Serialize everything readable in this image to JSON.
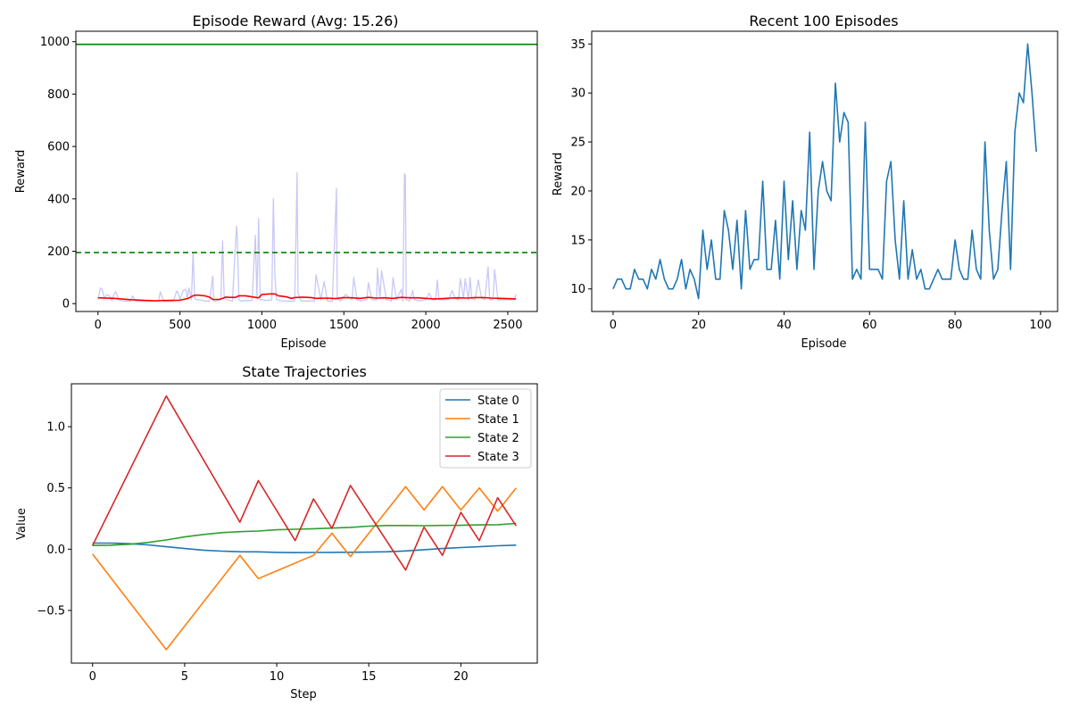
{
  "figure": {
    "background": "#ffffff"
  },
  "chart_data": [
    {
      "type": "line",
      "title": "Episode Reward (Avg: 15.26)",
      "xlabel": "Episode",
      "ylabel": "Reward",
      "xlim": [
        -135,
        2680
      ],
      "ylim": [
        -30,
        1040
      ],
      "xticks": [
        0,
        500,
        1000,
        1500,
        2000,
        2500
      ],
      "yticks": [
        0,
        200,
        400,
        600,
        800,
        1000
      ],
      "grid": false,
      "legend": "none",
      "hlines": [
        {
          "y": 990,
          "color": "#008000",
          "style": "solid"
        },
        {
          "y": 195,
          "color": "#008000",
          "style": "dashed"
        }
      ],
      "series": [
        {
          "role": "raw",
          "color": "#c8c8f8",
          "x": [
            0,
            15,
            25,
            40,
            55,
            70,
            85,
            100,
            110,
            125,
            140,
            160,
            180,
            200,
            210,
            230,
            260,
            300,
            340,
            370,
            380,
            400,
            430,
            460,
            480,
            490,
            500,
            520,
            535,
            545,
            555,
            570,
            580,
            590,
            600,
            620,
            650,
            680,
            700,
            705,
            720,
            750,
            760,
            770,
            790,
            820,
            845,
            850,
            860,
            870,
            900,
            940,
            960,
            970,
            980,
            990,
            1000,
            1030,
            1060,
            1070,
            1080,
            1090,
            1120,
            1160,
            1200,
            1215,
            1220,
            1240,
            1280,
            1320,
            1330,
            1360,
            1380,
            1400,
            1430,
            1455,
            1460,
            1480,
            1510,
            1550,
            1560,
            1580,
            1610,
            1640,
            1650,
            1670,
            1700,
            1705,
            1720,
            1730,
            1760,
            1790,
            1800,
            1820,
            1850,
            1860,
            1870,
            1875,
            1880,
            1900,
            1920,
            1930,
            1960,
            2000,
            2020,
            2040,
            2060,
            2070,
            2080,
            2100,
            2140,
            2160,
            2180,
            2200,
            2210,
            2230,
            2240,
            2260,
            2270,
            2280,
            2300,
            2320,
            2340,
            2360,
            2380,
            2390,
            2410,
            2420,
            2440,
            2460,
            2480,
            2500,
            2520,
            2540,
            2550
          ],
          "y": [
            15,
            60,
            55,
            20,
            35,
            30,
            12,
            40,
            45,
            15,
            12,
            10,
            10,
            10,
            30,
            10,
            10,
            10,
            10,
            10,
            45,
            10,
            10,
            10,
            48,
            40,
            15,
            50,
            55,
            20,
            60,
            15,
            195,
            20,
            15,
            15,
            10,
            10,
            105,
            10,
            10,
            15,
            240,
            20,
            15,
            10,
            295,
            250,
            15,
            10,
            12,
            12,
            260,
            20,
            325,
            15,
            15,
            12,
            15,
            400,
            100,
            15,
            10,
            10,
            10,
            500,
            40,
            10,
            10,
            10,
            110,
            15,
            85,
            10,
            10,
            440,
            20,
            10,
            35,
            15,
            100,
            15,
            10,
            15,
            80,
            15,
            15,
            135,
            20,
            125,
            15,
            10,
            100,
            15,
            55,
            10,
            495,
            490,
            15,
            10,
            50,
            15,
            10,
            15,
            40,
            15,
            15,
            90,
            15,
            15,
            15,
            50,
            20,
            15,
            95,
            20,
            95,
            15,
            100,
            20,
            15,
            90,
            20,
            15,
            140,
            15,
            15,
            130,
            15,
            15,
            15,
            15,
            15,
            15,
            35
          ]
        },
        {
          "role": "moving-average",
          "color": "#ff0000",
          "x": [
            0,
            100,
            200,
            300,
            350,
            400,
            500,
            550,
            580,
            600,
            650,
            680,
            700,
            740,
            760,
            780,
            800,
            840,
            860,
            900,
            950,
            980,
            1000,
            1050,
            1080,
            1100,
            1150,
            1180,
            1200,
            1250,
            1300,
            1330,
            1400,
            1450,
            1500,
            1550,
            1600,
            1650,
            1700,
            1750,
            1800,
            1850,
            1900,
            1950,
            2000,
            2050,
            2100,
            2150,
            2200,
            2250,
            2300,
            2350,
            2400,
            2450,
            2500,
            2550
          ],
          "y": [
            22,
            20,
            15,
            12,
            11,
            12,
            13,
            20,
            30,
            33,
            30,
            25,
            16,
            16,
            20,
            25,
            24,
            24,
            30,
            30,
            25,
            22,
            35,
            37,
            37,
            30,
            26,
            20,
            23,
            25,
            23,
            20,
            21,
            19,
            23,
            22,
            20,
            24,
            21,
            22,
            20,
            24,
            22,
            22,
            20,
            18,
            19,
            21,
            22,
            21,
            23,
            23,
            21,
            20,
            19,
            18
          ]
        }
      ]
    },
    {
      "type": "line",
      "title": "Recent 100 Episodes",
      "xlabel": "Episode",
      "ylabel": "Reward",
      "xlim": [
        -5,
        104
      ],
      "ylim": [
        7.7,
        36.3
      ],
      "xticks": [
        0,
        20,
        40,
        60,
        80,
        100
      ],
      "yticks": [
        10,
        15,
        20,
        25,
        30,
        35
      ],
      "grid": false,
      "legend": "none",
      "series": [
        {
          "color": "#1f77b4",
          "x": [
            0,
            1,
            2,
            3,
            4,
            5,
            6,
            7,
            8,
            9,
            10,
            11,
            12,
            13,
            14,
            15,
            16,
            17,
            18,
            19,
            20,
            21,
            22,
            23,
            24,
            25,
            26,
            27,
            28,
            29,
            30,
            31,
            32,
            33,
            34,
            35,
            36,
            37,
            38,
            39,
            40,
            41,
            42,
            43,
            44,
            45,
            46,
            47,
            48,
            49,
            50,
            51,
            52,
            53,
            54,
            55,
            56,
            57,
            58,
            59,
            60,
            61,
            62,
            63,
            64,
            65,
            66,
            67,
            68,
            69,
            70,
            71,
            72,
            73,
            74,
            75,
            76,
            77,
            78,
            79,
            80,
            81,
            82,
            83,
            84,
            85,
            86,
            87,
            88,
            89,
            90,
            91,
            92,
            93,
            94,
            95,
            96,
            97,
            98,
            99
          ],
          "y": [
            10,
            11,
            11,
            10,
            10,
            12,
            11,
            11,
            10,
            12,
            11,
            13,
            11,
            10,
            10,
            11,
            13,
            10,
            12,
            11,
            9,
            16,
            12,
            15,
            11,
            11,
            18,
            16,
            12,
            17,
            10,
            18,
            12,
            13,
            13,
            21,
            12,
            12,
            17,
            11,
            21,
            13,
            19,
            12,
            18,
            16,
            26,
            12,
            20,
            23,
            20,
            19,
            31,
            25,
            28,
            27,
            11,
            12,
            11,
            27,
            12,
            12,
            12,
            11,
            21,
            23,
            15,
            11,
            19,
            11,
            14,
            11,
            12,
            10,
            10,
            11,
            12,
            11,
            11,
            11,
            15,
            12,
            11,
            11,
            16,
            12,
            11,
            25,
            16,
            11,
            12,
            18,
            23,
            12,
            26,
            30,
            29,
            35,
            30,
            24
          ]
        }
      ]
    },
    {
      "type": "line",
      "title": "State Trajectories",
      "xlabel": "Step",
      "ylabel": "Value",
      "xlim": [
        -1.15,
        24.15
      ],
      "ylim": [
        -0.93,
        1.35
      ],
      "xticks": [
        0,
        5,
        10,
        15,
        20
      ],
      "yticks": [
        -0.5,
        0.0,
        0.5,
        1.0
      ],
      "ytick_labels": [
        "−0.5",
        "0.0",
        "0.5",
        "1.0"
      ],
      "grid": false,
      "legend": "top-right",
      "series": [
        {
          "name": "State 0",
          "color": "#1f77b4",
          "x": [
            0,
            1,
            2,
            3,
            4,
            5,
            6,
            7,
            8,
            9,
            10,
            11,
            12,
            13,
            14,
            15,
            16,
            17,
            18,
            19,
            20,
            21,
            22,
            23
          ],
          "y": [
            0.05,
            0.05,
            0.045,
            0.035,
            0.02,
            0.005,
            -0.008,
            -0.016,
            -0.021,
            -0.022,
            -0.026,
            -0.028,
            -0.027,
            -0.026,
            -0.025,
            -0.024,
            -0.021,
            -0.014,
            -0.004,
            0.005,
            0.013,
            0.02,
            0.028,
            0.033
          ]
        },
        {
          "name": "State 1",
          "color": "#ff7f0e",
          "x": [
            0,
            4,
            8,
            9,
            12,
            13,
            14,
            17,
            18,
            19,
            20,
            21,
            22,
            23
          ],
          "y": [
            -0.04,
            -0.82,
            -0.05,
            -0.24,
            -0.05,
            0.13,
            -0.06,
            0.51,
            0.32,
            0.51,
            0.32,
            0.5,
            0.31,
            0.5
          ]
        },
        {
          "name": "State 2",
          "color": "#2ca02c",
          "x": [
            0,
            1,
            2,
            3,
            4,
            5,
            6,
            7,
            8,
            9,
            10,
            11,
            12,
            13,
            14,
            15,
            16,
            17,
            18,
            19,
            20,
            21,
            22,
            23
          ],
          "y": [
            0.03,
            0.032,
            0.04,
            0.055,
            0.075,
            0.1,
            0.12,
            0.135,
            0.143,
            0.148,
            0.158,
            0.163,
            0.167,
            0.172,
            0.178,
            0.188,
            0.193,
            0.193,
            0.192,
            0.194,
            0.195,
            0.198,
            0.2,
            0.21
          ]
        },
        {
          "name": "State 3",
          "color": "#d62728",
          "x": [
            0,
            4,
            8,
            9,
            11,
            12,
            13,
            14,
            17,
            18,
            19,
            20,
            21,
            22,
            23
          ],
          "y": [
            0.03,
            1.25,
            0.22,
            0.56,
            0.07,
            0.41,
            0.17,
            0.52,
            -0.17,
            0.18,
            -0.05,
            0.3,
            0.07,
            0.42,
            0.19
          ]
        }
      ]
    }
  ]
}
